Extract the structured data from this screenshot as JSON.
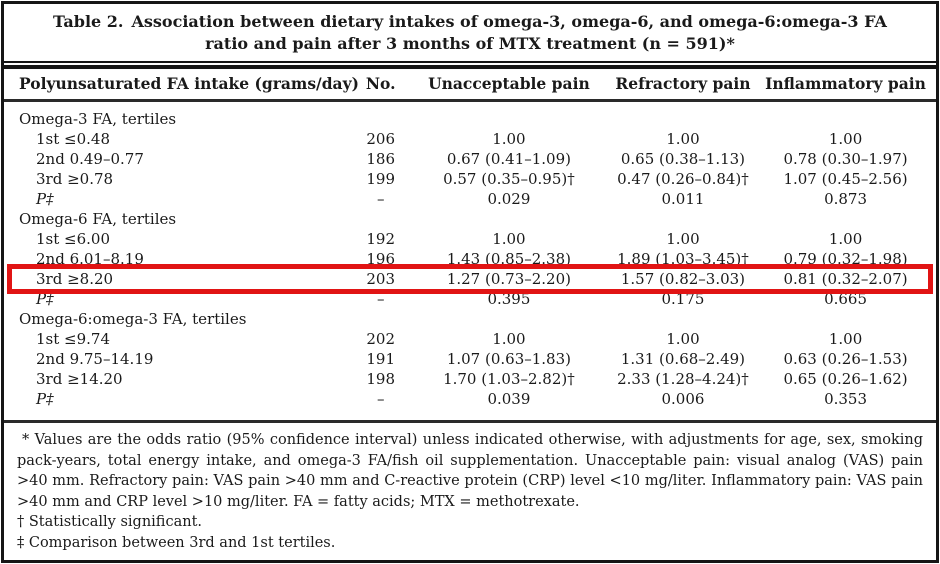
{
  "title": {
    "label": "Table 2.",
    "text": "Association between dietary intakes of omega-3, omega-6, and omega-6:omega-3 FA ratio and pain after 3 months of MTX treatment (n = 591)*"
  },
  "columns": {
    "intake": "Polyunsaturated FA intake (grams/day)",
    "no": "No.",
    "unacceptable": "Unacceptable pain",
    "refractory": "Refractory pain",
    "inflammatory": "Inflammatory pain"
  },
  "highlight_color": "#e11414",
  "sections": [
    {
      "header": "Omega-3 FA, tertiles",
      "rows": [
        {
          "label": "1st ≤0.48",
          "no": "206",
          "unacceptable": "1.00",
          "refractory": "1.00",
          "inflammatory": "1.00"
        },
        {
          "label": "2nd 0.49–0.77",
          "no": "186",
          "unacceptable": "0.67 (0.41–1.09)",
          "refractory": "0.65 (0.38–1.13)",
          "inflammatory": "0.78 (0.30–1.97)"
        },
        {
          "label": "3rd ≥0.78",
          "no": "199",
          "unacceptable": "0.57 (0.35–0.95)†",
          "refractory": "0.47 (0.26–0.84)†",
          "inflammatory": "1.07 (0.45–2.56)"
        },
        {
          "label": "P‡",
          "no": "–",
          "unacceptable": "0.029",
          "refractory": "0.011",
          "inflammatory": "0.873"
        }
      ]
    },
    {
      "header": "Omega-6 FA, tertiles",
      "rows": [
        {
          "label": "1st ≤6.00",
          "no": "192",
          "unacceptable": "1.00",
          "refractory": "1.00",
          "inflammatory": "1.00"
        },
        {
          "label": "2nd 6.01–8.19",
          "no": "196",
          "unacceptable": "1.43 (0.85–2.38)",
          "refractory": "1.89 (1.03–3.45)†",
          "inflammatory": "0.79 (0.32–1.98)"
        },
        {
          "label": "3rd ≥8.20",
          "no": "203",
          "unacceptable": "1.27 (0.73–2.20)",
          "refractory": "1.57 (0.82–3.03)",
          "inflammatory": "0.81 (0.32–2.07)"
        },
        {
          "label": "P‡",
          "no": "–",
          "unacceptable": "0.395",
          "refractory": "0.175",
          "inflammatory": "0.665"
        }
      ]
    },
    {
      "header": "Omega-6:omega-3 FA, tertiles",
      "rows": [
        {
          "label": "1st ≤9.74",
          "no": "202",
          "unacceptable": "1.00",
          "refractory": "1.00",
          "inflammatory": "1.00"
        },
        {
          "label": "2nd 9.75–14.19",
          "no": "191",
          "unacceptable": "1.07 (0.63–1.83)",
          "refractory": "1.31 (0.68–2.49)",
          "inflammatory": "0.63 (0.26–1.53)"
        },
        {
          "label": "3rd ≥14.20",
          "no": "198",
          "unacceptable": "1.70 (1.03–2.82)†",
          "refractory": "2.33 (1.28–4.24)†",
          "inflammatory": "0.65 (0.26–1.62)"
        },
        {
          "label": "P‡",
          "no": "–",
          "unacceptable": "0.039",
          "refractory": "0.006",
          "inflammatory": "0.353"
        }
      ]
    }
  ],
  "footnotes": [
    "* Values are the odds ratio (95% confidence interval) unless indicated otherwise, with adjustments for age, sex, smoking pack-years, total energy intake, and omega-3 FA/fish oil supplementation. Unacceptable pain: visual analog (VAS) pain >40 mm. Refractory pain: VAS pain >40 mm and C-reactive protein (CRP) level <10 mg/liter. Inflammatory pain: VAS pain >40 mm and CRP level >10 mg/liter. FA = fatty acids; MTX = methotrexate.",
    "† Statistically significant.",
    "‡ Comparison between 3rd and 1st tertiles."
  ]
}
